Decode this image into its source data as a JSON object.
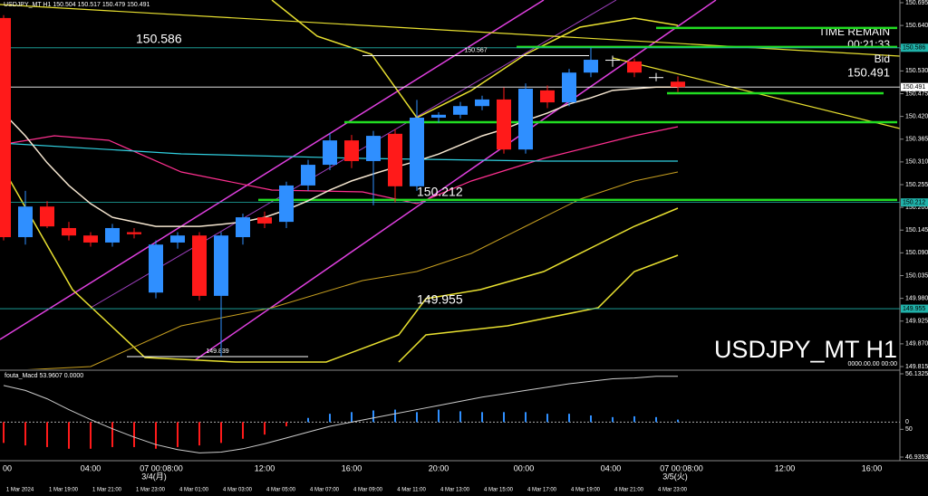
{
  "chart_data": {
    "type": "candlestick",
    "symbol": "USDJPY_MT H1",
    "time_remain_label": "TIME REMAIN",
    "time_remain": "00:21:33",
    "bid_label": "Bid",
    "big_title": "USDJPY_MT H1",
    "corner_time": "0000.00.00 00:00",
    "up_color": "#2f8fff",
    "down_color": "#ff1a1a",
    "doji_color": "#ffffff",
    "ylim": [
      149.815,
      150.695
    ],
    "yticks": [
      {
        "value": 150.695,
        "label": "150.695"
      },
      {
        "value": 150.64,
        "label": "150.640"
      },
      {
        "value": 150.585,
        "label": "150.585"
      },
      {
        "value": 150.53,
        "label": "150.530"
      },
      {
        "value": 150.475,
        "label": "150.475"
      },
      {
        "value": 150.42,
        "label": "150.420"
      },
      {
        "value": 150.365,
        "label": "150.365"
      },
      {
        "value": 150.31,
        "label": "150.310"
      },
      {
        "value": 150.255,
        "label": "150.255"
      },
      {
        "value": 150.2,
        "label": "150.200"
      },
      {
        "value": 150.145,
        "label": "150.145"
      },
      {
        "value": 150.09,
        "label": "150.090"
      },
      {
        "value": 150.035,
        "label": "150.035"
      },
      {
        "value": 149.98,
        "label": "149.980"
      },
      {
        "value": 149.925,
        "label": "149.925"
      },
      {
        "value": 149.87,
        "label": "149.870"
      },
      {
        "value": 149.815,
        "label": "149.815"
      }
    ],
    "candles": [
      {
        "o": 150.658,
        "h": 150.665,
        "l": 150.12,
        "c": 150.128
      },
      {
        "o": 150.128,
        "h": 150.24,
        "l": 150.11,
        "c": 150.202
      },
      {
        "o": 150.202,
        "h": 150.215,
        "l": 150.15,
        "c": 150.154
      },
      {
        "o": 150.15,
        "h": 150.165,
        "l": 150.12,
        "c": 150.132
      },
      {
        "o": 150.132,
        "h": 150.14,
        "l": 150.105,
        "c": 150.115
      },
      {
        "o": 150.115,
        "h": 150.16,
        "l": 150.105,
        "c": 150.15
      },
      {
        "o": 150.14,
        "h": 150.15,
        "l": 150.125,
        "c": 150.135
      },
      {
        "o": 149.994,
        "h": 150.12,
        "l": 149.98,
        "c": 150.11
      },
      {
        "o": 150.115,
        "h": 150.14,
        "l": 150.1,
        "c": 150.132
      },
      {
        "o": 150.132,
        "h": 150.14,
        "l": 149.975,
        "c": 149.986
      },
      {
        "o": 149.986,
        "h": 150.14,
        "l": 149.84,
        "c": 150.132
      },
      {
        "o": 150.128,
        "h": 150.185,
        "l": 150.11,
        "c": 150.176
      },
      {
        "o": 150.176,
        "h": 150.19,
        "l": 150.15,
        "c": 150.161
      },
      {
        "o": 150.165,
        "h": 150.262,
        "l": 150.15,
        "c": 150.253
      },
      {
        "o": 150.253,
        "h": 150.315,
        "l": 150.24,
        "c": 150.303
      },
      {
        "o": 150.303,
        "h": 150.38,
        "l": 150.29,
        "c": 150.362
      },
      {
        "o": 150.362,
        "h": 150.375,
        "l": 150.295,
        "c": 150.312
      },
      {
        "o": 150.312,
        "h": 150.385,
        "l": 150.205,
        "c": 150.373
      },
      {
        "o": 150.378,
        "h": 150.39,
        "l": 150.212,
        "c": 150.251
      },
      {
        "o": 150.251,
        "h": 150.46,
        "l": 150.24,
        "c": 150.417
      },
      {
        "o": 150.417,
        "h": 150.43,
        "l": 150.405,
        "c": 150.424
      },
      {
        "o": 150.424,
        "h": 150.455,
        "l": 150.415,
        "c": 150.445
      },
      {
        "o": 150.445,
        "h": 150.47,
        "l": 150.435,
        "c": 150.461
      },
      {
        "o": 150.461,
        "h": 150.49,
        "l": 150.33,
        "c": 150.34
      },
      {
        "o": 150.34,
        "h": 150.5,
        "l": 150.33,
        "c": 150.487
      },
      {
        "o": 150.483,
        "h": 150.495,
        "l": 150.44,
        "c": 150.454
      },
      {
        "o": 150.454,
        "h": 150.535,
        "l": 150.445,
        "c": 150.526
      },
      {
        "o": 150.526,
        "h": 150.586,
        "l": 150.515,
        "c": 150.557
      },
      {
        "o": 150.557,
        "h": 150.567,
        "l": 150.54,
        "c": 150.555
      },
      {
        "o": 150.553,
        "h": 150.56,
        "l": 150.515,
        "c": 150.526
      },
      {
        "o": 150.515,
        "h": 150.525,
        "l": 150.505,
        "c": 150.514
      },
      {
        "o": 150.504,
        "h": 150.517,
        "l": 150.479,
        "c": 150.491
      }
    ],
    "ma": {
      "color": "#f5e6d0",
      "values": [
        150.428,
        150.373,
        150.308,
        150.253,
        150.209,
        150.176,
        150.165,
        150.154,
        150.154,
        150.154,
        150.159,
        150.165,
        150.176,
        150.194,
        150.216,
        150.242,
        150.264,
        150.281,
        150.297,
        150.312,
        150.329,
        150.351,
        150.373,
        150.389,
        150.41,
        150.428,
        150.45,
        150.465,
        150.483,
        150.487,
        150.491,
        150.491
      ]
    },
    "price_lines": [
      {
        "value": 150.586,
        "label": "150.586",
        "color": "#20b2aa"
      },
      {
        "value": 150.491,
        "label": "150.491",
        "color": "#ffffff"
      },
      {
        "value": 150.212,
        "label": "150.212",
        "color": "#20b2aa"
      },
      {
        "value": 149.955,
        "label": "149.955",
        "color": "#20b2aa"
      }
    ],
    "markers": [
      {
        "value": 150.567,
        "label": "150.567"
      },
      {
        "value": 149.839,
        "label": "149.839"
      }
    ],
    "green_levels": [
      150.634,
      150.588,
      150.476,
      150.406,
      150.218
    ],
    "green_color": "#22dd22",
    "macd_title": "fouta_Macd 53.9607 0.0000",
    "macd_ylim": [
      -42,
      58
    ],
    "macd_yticks": [
      0
    ],
    "macd_y2lim": [
      46.9353,
      56.1325
    ],
    "macd_y2ticks": [
      56.1325,
      50,
      46.9353
    ],
    "macd_hist": [
      -25,
      -28,
      -30,
      -32,
      -32,
      -30,
      -30,
      -32,
      -30,
      -28,
      -25,
      -20,
      -15,
      -5,
      5,
      10,
      12,
      14,
      15,
      12,
      15,
      13,
      12,
      12,
      12,
      10,
      10,
      8,
      6,
      7,
      6,
      3
    ],
    "macd_line": [
      44,
      38,
      28,
      15,
      3,
      -8,
      -18,
      -27,
      -33,
      -37,
      -36,
      -32,
      -26,
      -19,
      -12,
      -5,
      0,
      5,
      10,
      15,
      20,
      25,
      30,
      34,
      38,
      42,
      46,
      49,
      52,
      53,
      55,
      55
    ],
    "x_labels": [
      "00",
      "04:00",
      "07 00:08:00",
      "12:00",
      "16:00",
      "20:00",
      "00:00",
      "04:00",
      "07 00:08:00",
      "12:00",
      "16:00"
    ],
    "day_labels": [
      "3/4(月)",
      "3/5(火)"
    ],
    "time_labels": [
      "1 Mar 2024",
      "1 Mar 19:00",
      "1 Mar 21:00",
      "1 Mar 23:00",
      "4 Mar 01:00",
      "4 Mar 03:00",
      "4 Mar 05:00",
      "4 Mar 07:00",
      "4 Mar 09:00",
      "4 Mar 11:00",
      "4 Mar 13:00",
      "4 Mar 15:00",
      "4 Mar 17:00",
      "4 Mar 19:00",
      "4 Mar 21:00",
      "4 Mar 23:00"
    ]
  }
}
